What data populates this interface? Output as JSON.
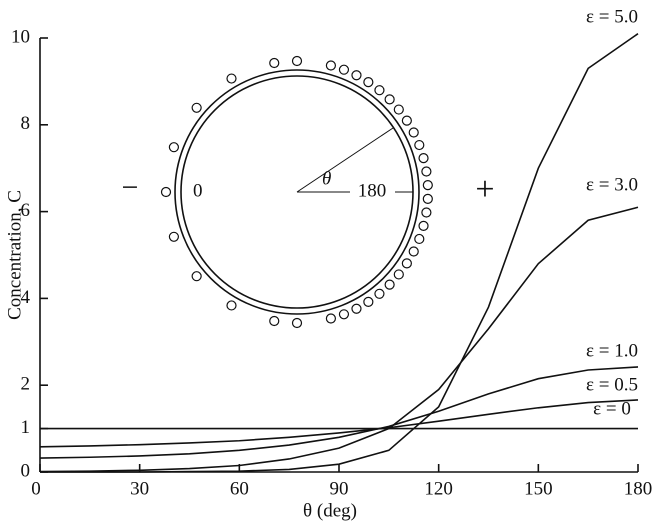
{
  "chart_data": {
    "type": "line",
    "x_label": "θ (deg)",
    "y_label": "Concentration, C",
    "x": [
      0,
      15,
      30,
      45,
      60,
      75,
      90,
      105,
      120,
      135,
      150,
      165,
      180
    ],
    "xlim": [
      0,
      180
    ],
    "xticks": [
      0,
      30,
      60,
      90,
      120,
      150,
      180
    ],
    "ylim": [
      0,
      10
    ],
    "yticks": [
      0,
      1,
      2,
      4,
      6,
      8,
      10
    ],
    "series": [
      {
        "name": "ε = 5.0",
        "color": "#111111",
        "values": [
          0,
          0,
          0,
          0.01,
          0.02,
          0.06,
          0.18,
          0.5,
          1.5,
          3.8,
          7.0,
          9.3,
          10.1
        ]
      },
      {
        "name": "ε = 3.0",
        "color": "#111111",
        "values": [
          0.01,
          0.02,
          0.04,
          0.08,
          0.15,
          0.3,
          0.55,
          1.0,
          1.9,
          3.3,
          4.8,
          5.8,
          6.1
        ]
      },
      {
        "name": "ε = 1.0",
        "color": "#111111",
        "values": [
          0.32,
          0.34,
          0.37,
          0.42,
          0.5,
          0.62,
          0.8,
          1.05,
          1.4,
          1.8,
          2.15,
          2.35,
          2.42
        ]
      },
      {
        "name": "ε = 0.5",
        "color": "#111111",
        "values": [
          0.58,
          0.6,
          0.63,
          0.67,
          0.72,
          0.8,
          0.9,
          1.02,
          1.17,
          1.33,
          1.48,
          1.6,
          1.66
        ]
      },
      {
        "name": "ε = 0",
        "color": "#111111",
        "values": [
          1,
          1,
          1,
          1,
          1,
          1,
          1,
          1,
          1,
          1,
          1,
          1,
          1
        ]
      }
    ],
    "annotations": [
      "0",
      "180",
      "θ",
      "−",
      "+"
    ]
  }
}
